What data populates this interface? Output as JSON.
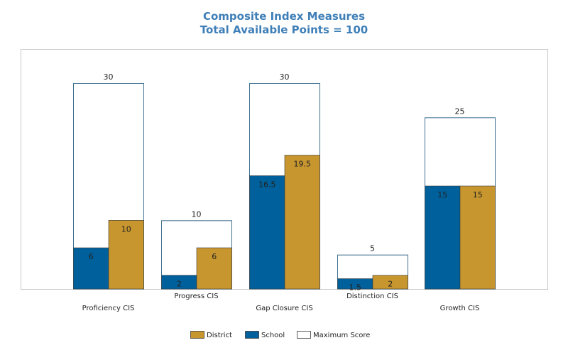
{
  "chart_data": {
    "type": "bar",
    "title": "Composite Index Measures",
    "subtitle": "Total Available Points = 100",
    "categories": [
      "Proficiency CIS",
      "Progress CIS",
      "Gap Closure CIS",
      "Distinction CIS",
      "Growth CIS"
    ],
    "series": [
      {
        "name": "Maximum Score",
        "values": [
          30,
          10,
          30,
          5,
          25
        ],
        "color": "#ffffff",
        "stroke": "#3f6f8f"
      },
      {
        "name": "School",
        "values": [
          6,
          2,
          16.5,
          1.5,
          15
        ],
        "color": "#00609b"
      },
      {
        "name": "District",
        "values": [
          10,
          6,
          19.5,
          2,
          15
        ],
        "color": "#c8962f"
      }
    ],
    "legend": {
      "position": "bottom",
      "items": [
        {
          "label": "District",
          "color": "#c8962f"
        },
        {
          "label": "School",
          "color": "#00609b"
        },
        {
          "label": "Maximum Score",
          "color": "#ffffff"
        }
      ]
    },
    "ylim": [
      0,
      35
    ],
    "grid": false
  }
}
